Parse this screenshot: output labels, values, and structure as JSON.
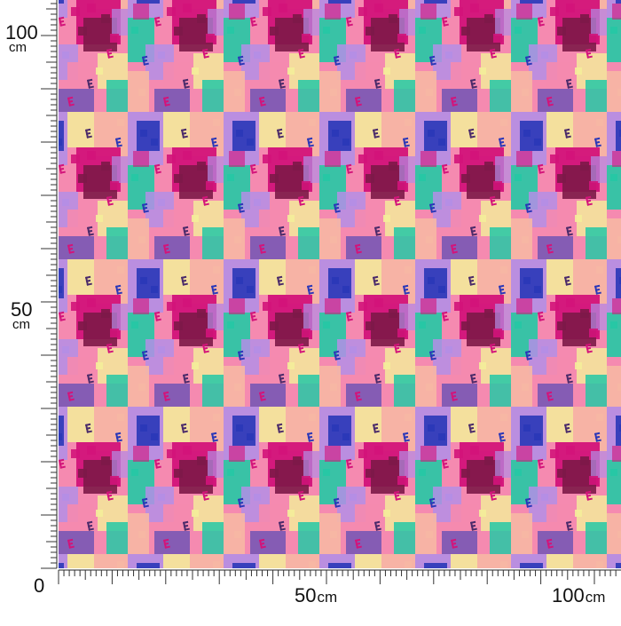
{
  "ruler": {
    "unit": "cm",
    "y_labels": [
      {
        "value": "100",
        "unit": "cm"
      },
      {
        "value": "50",
        "unit": "cm"
      },
      {
        "value": "0",
        "unit": ""
      }
    ],
    "x_labels": [
      {
        "value": "50",
        "unit": "cm"
      },
      {
        "value": "100",
        "unit": "cm"
      }
    ]
  },
  "fabric": {
    "pattern": "colorful pixel mosaic with scattered letter E motifs",
    "colors": {
      "pink": "#f58ab0",
      "magenta": "#d3137a",
      "maroon": "#7d1848",
      "blue": "#2a37b8",
      "lavender": "#b48ee6",
      "teal": "#25c8a6",
      "yellow": "#f4ef9a",
      "peach": "#f8b7a4",
      "dark_letter": "#4a2a6a"
    }
  }
}
